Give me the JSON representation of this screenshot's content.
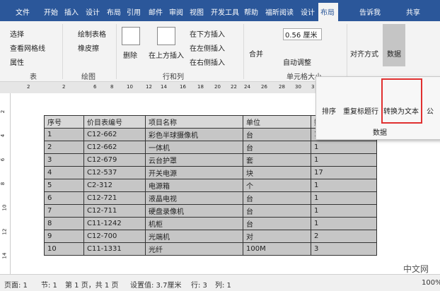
{
  "tabs": [
    "文件",
    "开始",
    "插入",
    "设计",
    "布局",
    "引用",
    "邮件",
    "审阅",
    "视图",
    "开发工具",
    "帮助",
    "福昕阅读",
    "设计",
    "布局"
  ],
  "tell_me": "告诉我",
  "share": "共享",
  "ribbon": {
    "table_group": {
      "items": [
        "选择",
        "查看网格线",
        "属性"
      ],
      "label": "表"
    },
    "draw_group": {
      "items": [
        "绘制表格",
        "橡皮擦"
      ],
      "label": "绘图"
    },
    "rows_cols_group": {
      "items": [
        "删除",
        "在上方插入",
        "在下方插入",
        "在左侧插入",
        "在右侧插入"
      ],
      "label": "行和列"
    },
    "merge": "合并",
    "cell_size_group": {
      "height": "0.56 厘米",
      "autofit": "自动调整",
      "label": "单元格大小"
    },
    "align": "对齐方式",
    "data": "数据"
  },
  "ruler": [
    "2",
    "2",
    "6",
    "8",
    "10",
    "12",
    "14",
    "16",
    "18",
    "20",
    "22",
    "24",
    "26",
    "28",
    "30",
    "3"
  ],
  "vruler": [
    "2",
    "4",
    "6",
    "8",
    "10",
    "12",
    "14"
  ],
  "popup": {
    "buttons": [
      "排序",
      "重复标题行",
      "转换为文本",
      "公"
    ],
    "group": "数据"
  },
  "table": {
    "header": [
      "序号",
      "价目表编号",
      "项目名称",
      "单位",
      "数"
    ],
    "rows": [
      [
        "1",
        "C12-662",
        "彩色半球摄像机",
        "台",
        "1"
      ],
      [
        "2",
        "C12-662",
        "一体机",
        "台",
        "1"
      ],
      [
        "3",
        "C12-679",
        "云台护罩",
        "套",
        "1"
      ],
      [
        "4",
        "C12-537",
        "开关电源",
        "块",
        "17"
      ],
      [
        "5",
        "C2-312",
        "电源箱",
        "个",
        "1"
      ],
      [
        "6",
        "C12-721",
        "液晶电视",
        "台",
        "1"
      ],
      [
        "7",
        "C12-711",
        "硬盘录像机",
        "台",
        "1"
      ],
      [
        "8",
        "C11-1242",
        "机柜",
        "台",
        "1"
      ],
      [
        "9",
        "C12-700",
        "光端机",
        "对",
        "2"
      ],
      [
        "10",
        "C11-1331",
        "光纤",
        "100M",
        "3"
      ]
    ]
  },
  "status": [
    "页面: 1",
    "节: 1",
    "第 1 页，共 1 页",
    "设置值: 3.7厘米",
    "行: 3",
    "列: 1",
    "100%"
  ],
  "watermark": "中文网"
}
